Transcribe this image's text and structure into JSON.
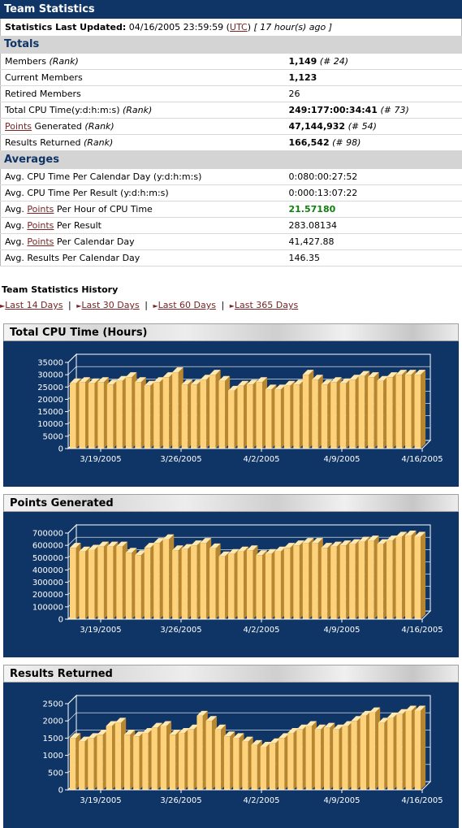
{
  "header": {
    "title": "Team Statistics"
  },
  "updated": {
    "label": "Statistics Last Updated:",
    "datetime": "04/16/2005 23:59:59",
    "tz_open": "(",
    "tz_link": "UTC",
    "tz_close": ")",
    "ago": "[ 17 hour(s) ago ]"
  },
  "totals": {
    "title": "Totals",
    "rows": [
      {
        "label": "Members",
        "label_rank": "(Rank)",
        "value": "1,149",
        "rank": "(# 24)"
      },
      {
        "label": "Current Members",
        "value": "1,123"
      },
      {
        "label": "Retired Members",
        "value": "26"
      },
      {
        "label": "Total CPU Time(y:d:h:m:s)",
        "label_rank": "(Rank)",
        "value": "249:177:00:34:41",
        "rank": "(# 73)"
      },
      {
        "link": "Points",
        "label": " Generated",
        "label_rank": "(Rank)",
        "value": "47,144,932",
        "rank": "(# 54)"
      },
      {
        "label": "Results Returned",
        "label_rank": "(Rank)",
        "value": "166,542",
        "rank": "(# 98)"
      }
    ]
  },
  "averages": {
    "title": "Averages",
    "rows": [
      {
        "label": "Avg. CPU Time Per Calendar Day (y:d:h:m:s)",
        "value": "0:080:00:27:52"
      },
      {
        "label": "Avg. CPU Time Per Result (y:d:h:m:s)",
        "value": "0:000:13:07:22"
      },
      {
        "pre": "Avg. ",
        "link": "Points",
        "post": " Per Hour of CPU Time",
        "value": "21.57180"
      },
      {
        "pre": "Avg. ",
        "link": "Points",
        "post": " Per Result",
        "value": "283.08134"
      },
      {
        "pre": "Avg. ",
        "link": "Points",
        "post": " Per Calendar Day",
        "value": "41,427.88"
      },
      {
        "label": "Avg. Results Per Calendar Day",
        "value": "146.35"
      }
    ]
  },
  "history": {
    "title": "Team Statistics History",
    "links": [
      "Last 14 Days",
      "Last 30 Days",
      "Last 60 Days",
      "Last 365 Days"
    ],
    "separator": "|"
  },
  "colors": {
    "navy": "#0f3466",
    "bar_front": "#fdd27a",
    "bar_top": "#ffe9b0",
    "bar_side": "#b8862f",
    "link": "#7a2424",
    "green": "#108010"
  },
  "chart_data": [
    {
      "type": "bar",
      "title": "Total CPU Time (Hours)",
      "ylim": [
        0,
        35000
      ],
      "yticks": [
        "35000",
        "30000",
        "25000",
        "20000",
        "15000",
        "10000",
        "5000",
        "0"
      ],
      "xticks": [
        "3/19/2005",
        "3/26/2005",
        "4/2/2005",
        "4/9/2005",
        "4/16/2005"
      ],
      "values": [
        26500,
        27000,
        26500,
        27000,
        26000,
        27500,
        29000,
        27000,
        25500,
        27000,
        29000,
        31000,
        26000,
        26000,
        28000,
        30000,
        27500,
        23500,
        25500,
        26000,
        27000,
        24000,
        24000,
        25500,
        26000,
        30000,
        28000,
        26000,
        27000,
        26500,
        28000,
        29500,
        29000,
        27500,
        29000,
        30000,
        30000,
        30000
      ]
    },
    {
      "type": "bar",
      "title": "Points Generated",
      "ylim": [
        0,
        700000
      ],
      "yticks": [
        "700000",
        "600000",
        "500000",
        "400000",
        "300000",
        "200000",
        "100000",
        "0"
      ],
      "xticks": [
        "3/19/2005",
        "3/26/2005",
        "4/2/2005",
        "4/9/2005",
        "4/16/2005"
      ],
      "values": [
        580000,
        550000,
        565000,
        590000,
        590000,
        590000,
        540000,
        520000,
        580000,
        620000,
        650000,
        560000,
        570000,
        600000,
        620000,
        575000,
        510000,
        530000,
        550000,
        560000,
        520000,
        530000,
        550000,
        580000,
        600000,
        620000,
        620000,
        580000,
        590000,
        600000,
        610000,
        630000,
        640000,
        610000,
        640000,
        670000,
        680000,
        670000
      ]
    },
    {
      "type": "bar",
      "title": "Results Returned",
      "ylim": [
        0,
        2500
      ],
      "yticks": [
        "2500",
        "2000",
        "1500",
        "1000",
        "500",
        "0"
      ],
      "xticks": [
        "3/19/2005",
        "3/26/2005",
        "4/2/2005",
        "4/9/2005",
        "4/16/2005"
      ],
      "values": [
        1500,
        1400,
        1500,
        1600,
        1850,
        1950,
        1600,
        1550,
        1650,
        1800,
        1850,
        1600,
        1650,
        1750,
        2150,
        2000,
        1750,
        1550,
        1500,
        1400,
        1300,
        1250,
        1350,
        1500,
        1650,
        1750,
        1850,
        1750,
        1800,
        1750,
        1850,
        2000,
        2150,
        2250,
        1950,
        2100,
        2200,
        2300,
        2300
      ]
    }
  ]
}
